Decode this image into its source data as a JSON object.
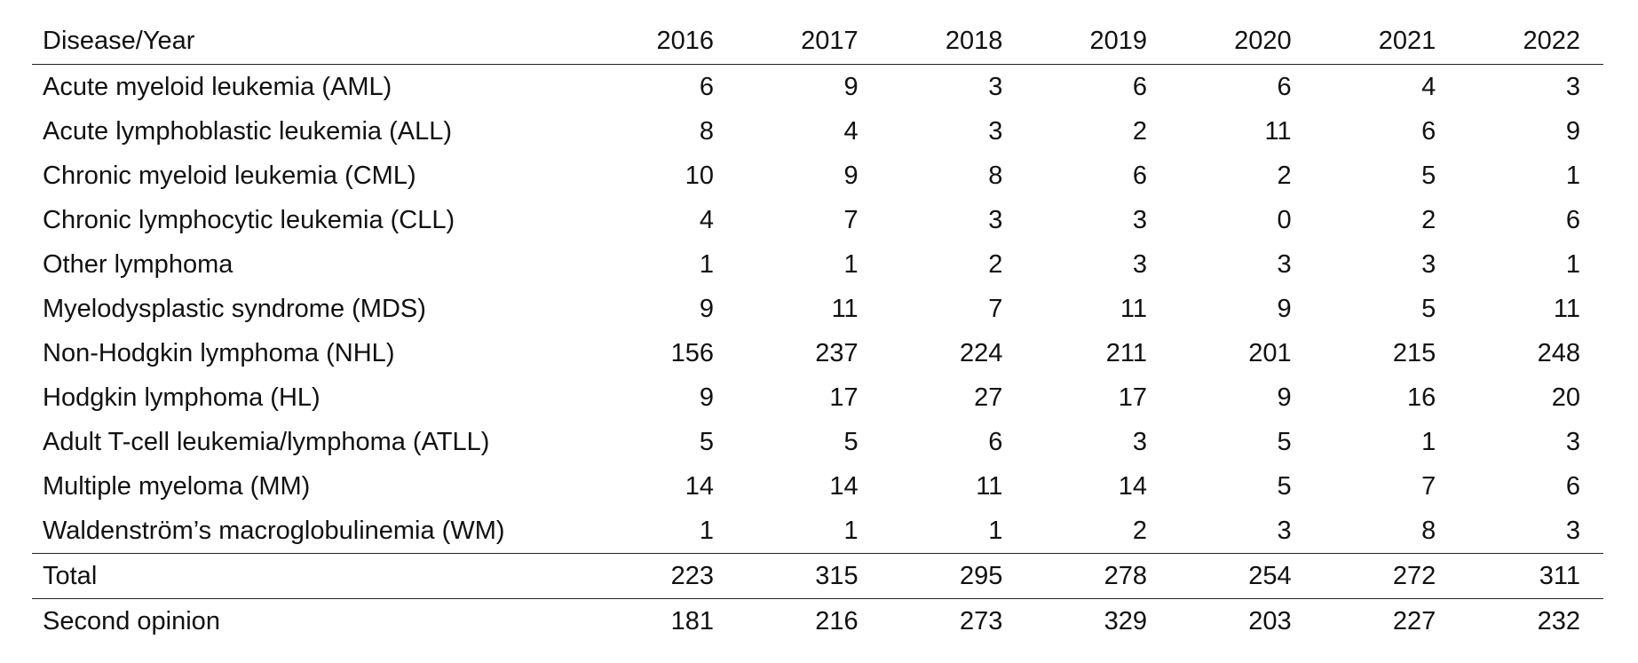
{
  "table": {
    "header": {
      "label": "Disease/Year",
      "years": [
        "2016",
        "2017",
        "2018",
        "2019",
        "2020",
        "2021",
        "2022"
      ]
    },
    "rows": [
      {
        "label": "Acute myeloid leukemia (AML)",
        "values": [
          "6",
          "9",
          "3",
          "6",
          "6",
          "4",
          "3"
        ]
      },
      {
        "label": "Acute lymphoblastic leukemia (ALL)",
        "values": [
          "8",
          "4",
          "3",
          "2",
          "11",
          "6",
          "9"
        ]
      },
      {
        "label": "Chronic myeloid leukemia (CML)",
        "values": [
          "10",
          "9",
          "8",
          "6",
          "2",
          "5",
          "1"
        ]
      },
      {
        "label": "Chronic lymphocytic leukemia (CLL)",
        "values": [
          "4",
          "7",
          "3",
          "3",
          "0",
          "2",
          "6"
        ]
      },
      {
        "label": "Other lymphoma",
        "values": [
          "1",
          "1",
          "2",
          "3",
          "3",
          "3",
          "1"
        ]
      },
      {
        "label": "Myelodysplastic syndrome (MDS)",
        "values": [
          "9",
          "11",
          "7",
          "11",
          "9",
          "5",
          "11"
        ]
      },
      {
        "label": "Non-Hodgkin lymphoma (NHL)",
        "values": [
          "156",
          "237",
          "224",
          "211",
          "201",
          "215",
          "248"
        ]
      },
      {
        "label": "Hodgkin lymphoma (HL)",
        "values": [
          "9",
          "17",
          "27",
          "17",
          "9",
          "16",
          "20"
        ]
      },
      {
        "label": "Adult T-cell leukemia/lymphoma (ATLL)",
        "values": [
          "5",
          "5",
          "6",
          "3",
          "5",
          "1",
          "3"
        ]
      },
      {
        "label": "Multiple myeloma (MM)",
        "values": [
          "14",
          "14",
          "11",
          "14",
          "5",
          "7",
          "6"
        ]
      },
      {
        "label": "Waldenström’s macroglobulinemia (WM)",
        "values": [
          "1",
          "1",
          "1",
          "2",
          "3",
          "8",
          "3"
        ]
      }
    ],
    "total": {
      "label": "Total",
      "values": [
        "223",
        "315",
        "295",
        "278",
        "254",
        "272",
        "311"
      ]
    },
    "second_opinion": {
      "label": "Second opinion",
      "values": [
        "181",
        "216",
        "273",
        "329",
        "203",
        "227",
        "232"
      ]
    }
  }
}
